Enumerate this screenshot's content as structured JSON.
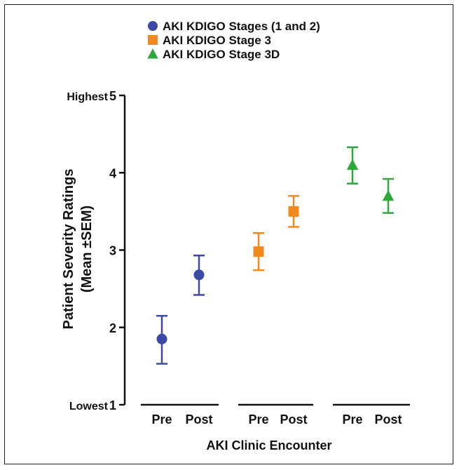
{
  "chart_data": {
    "type": "scatter",
    "title": "",
    "xlabel": "AKI Clinic Encounter",
    "ylabel_line1": "Patient Severity Ratings",
    "ylabel_line2": "(Mean ±SEM)",
    "ylim": [
      1,
      5
    ],
    "yticks": [
      1,
      2,
      3,
      4,
      5
    ],
    "ytick_end_labels": {
      "low": "Lowest",
      "high": "Highest"
    },
    "legend_position": "top-center",
    "series": [
      {
        "name": "AKI KDIGO Stages (1 and 2)",
        "color": "#3a4aa6",
        "marker": "circle",
        "points": [
          {
            "x": "Pre",
            "mean": 1.85,
            "sem_low": 1.53,
            "sem_high": 2.15
          },
          {
            "x": "Post",
            "mean": 2.68,
            "sem_low": 2.42,
            "sem_high": 2.93
          }
        ]
      },
      {
        "name": "AKI KDIGO Stage 3",
        "color": "#f08a1c",
        "marker": "square",
        "points": [
          {
            "x": "Pre",
            "mean": 2.98,
            "sem_low": 2.74,
            "sem_high": 3.22
          },
          {
            "x": "Post",
            "mean": 3.5,
            "sem_low": 3.3,
            "sem_high": 3.7
          }
        ]
      },
      {
        "name": "AKI KDIGO Stage 3D",
        "color": "#2ea83a",
        "marker": "triangle",
        "points": [
          {
            "x": "Pre",
            "mean": 4.1,
            "sem_low": 3.86,
            "sem_high": 4.33
          },
          {
            "x": "Post",
            "mean": 3.7,
            "sem_low": 3.48,
            "sem_high": 3.92
          }
        ]
      }
    ]
  }
}
